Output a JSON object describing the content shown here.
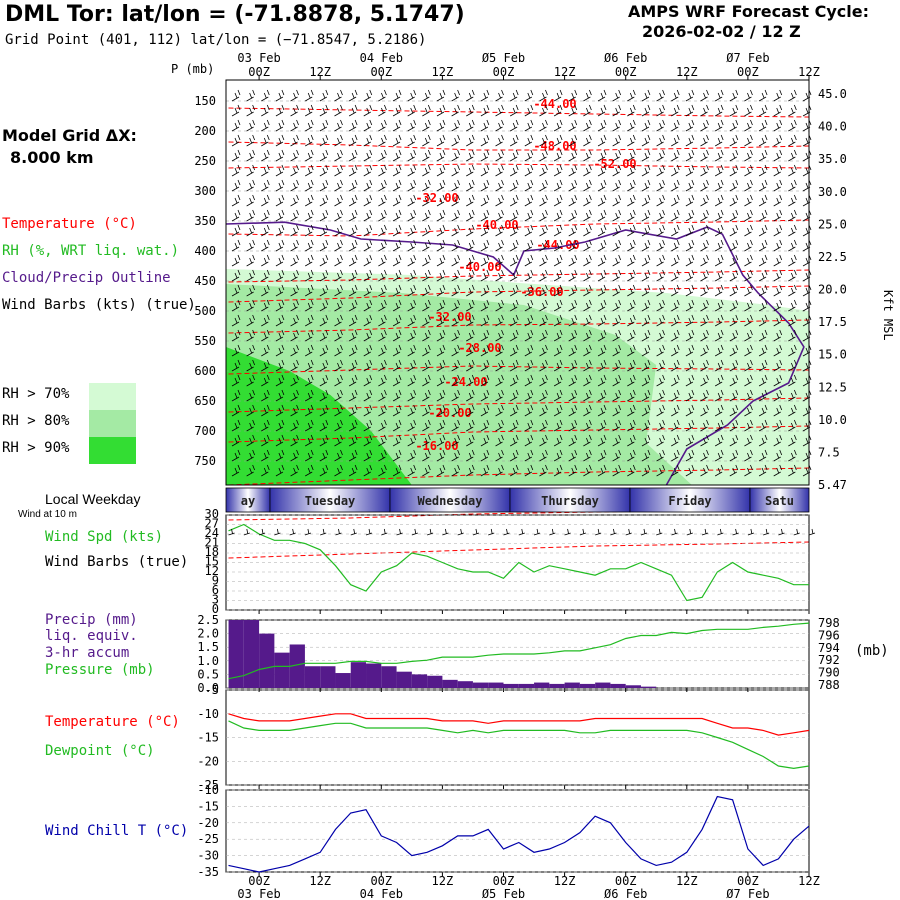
{
  "header": {
    "title": "DML Tor:  lat/lon = (-71.8878, 5.1747)",
    "grid_point": "Grid Point (401, 112) lat/lon = (−71.8547, 5.2186)",
    "cycle_line1": "AMPS WRF Forecast Cycle:",
    "cycle_line2": "2026-02-02 / 12  Z"
  },
  "model_grid": {
    "label": "Model Grid ΔX:",
    "value": "8.000 km"
  },
  "legend": {
    "temperature": "Temperature (°C)",
    "rh": "RH (%, WRT liq. wat.)",
    "cloud": "Cloud/Precip Outline",
    "wind": "Wind Barbs (kts) (true)",
    "rh70": "RH > 70%",
    "rh80": "RH > 80%",
    "rh90": "RH > 90%"
  },
  "colors": {
    "temperature": "#ff0000",
    "rh": "#22bb22",
    "cloud": "#551a8b",
    "rh70": "#d4fad4",
    "rh80": "#a4eaa4",
    "rh90": "#33dd33",
    "wind_chill": "#0000aa",
    "precip": "#551a8b",
    "pressure": "#22bb22",
    "dewpoint": "#22bb22"
  },
  "chart_data": [
    {
      "type": "contour",
      "name": "cross-section",
      "ylabel": "P (mb)",
      "y2label": "Kft MSL",
      "pressure_ticks": [
        150,
        200,
        250,
        300,
        350,
        400,
        450,
        500,
        550,
        600,
        650,
        700,
        750
      ],
      "height_ticks": [
        "45.0",
        "40.0",
        "35.0",
        "30.0",
        "25.0",
        "22.5",
        "20.0",
        "17.5",
        "15.0",
        "12.5",
        "10.0",
        "7.5",
        "5.47"
      ],
      "x_hours": [
        0,
        12,
        24,
        36,
        48,
        60,
        72,
        84,
        96,
        108
      ],
      "x_labels": [
        "00Z",
        "12Z",
        "00Z",
        "12Z",
        "00Z",
        "12Z",
        "00Z",
        "12Z",
        "00Z",
        "12Z"
      ],
      "date_labels": [
        {
          "hour": 0,
          "text": "03 Feb"
        },
        {
          "hour": 24,
          "text": "04 Feb"
        },
        {
          "hour": 48,
          "text": "Ø5 Feb"
        },
        {
          "hour": 72,
          "text": "Ø6 Feb"
        },
        {
          "hour": 96,
          "text": "Ø7 Feb"
        }
      ],
      "temperature_labels": [
        "-44.00",
        "-48.00",
        "-52.00",
        "-32.00",
        "-40.00",
        "-44.00",
        "-40.00",
        "-36.00",
        "-32.00",
        "-28.00",
        "-24.00",
        "-20.00",
        "-16.00"
      ],
      "temperature_contours": [
        -44,
        -48,
        -52,
        -32,
        -40,
        -36,
        -28,
        -24,
        -20,
        -16
      ],
      "rh_thresholds": [
        70,
        80,
        90
      ]
    },
    {
      "type": "line",
      "name": "wind-speed",
      "title": "Wind at 10 m",
      "ylabel": "Wind Spd (kts)",
      "ylabel2": "Wind Barbs (true)",
      "yticks": [
        0,
        3,
        6,
        9,
        12,
        15,
        18,
        21,
        24,
        27,
        30
      ],
      "ylim": [
        0,
        30
      ],
      "x_hours": [
        -6,
        -3,
        0,
        3,
        6,
        9,
        12,
        15,
        18,
        21,
        24,
        27,
        30,
        33,
        36,
        39,
        42,
        45,
        48,
        51,
        54,
        57,
        60,
        63,
        66,
        69,
        72,
        75,
        78,
        81,
        84,
        87,
        90,
        93,
        96,
        99,
        102,
        105,
        108
      ],
      "values": [
        25,
        27,
        24,
        22,
        22,
        21,
        19,
        14,
        8,
        6,
        12,
        14,
        18,
        17,
        15,
        13,
        12,
        12,
        10,
        15,
        12,
        14,
        13,
        12,
        11,
        13,
        13,
        15,
        13,
        11,
        3,
        4,
        12,
        15,
        12,
        11,
        10,
        8,
        8
      ]
    },
    {
      "type": "bar+line",
      "name": "precip-pressure",
      "ylabel": "Precip (mm)",
      "ylabel_lines": [
        "liq. equiv.",
        "3-hr accum"
      ],
      "y2label": "Pressure (mb)",
      "y2unit": "(mb)",
      "yticks": [
        0.0,
        0.5,
        1.0,
        1.5,
        2.0,
        2.5
      ],
      "y2ticks": [
        788,
        790,
        792,
        794,
        796,
        798
      ],
      "ylim": [
        0,
        2.5
      ],
      "y2lim": [
        787.5,
        798.5
      ],
      "x_hours": [
        -6,
        -3,
        0,
        3,
        6,
        9,
        12,
        15,
        18,
        21,
        24,
        27,
        30,
        33,
        36,
        39,
        42,
        45,
        48,
        51,
        54,
        57,
        60,
        63,
        66,
        69,
        72,
        75,
        78,
        81,
        84,
        87,
        90,
        93,
        96,
        99,
        102,
        105,
        108
      ],
      "precip": [
        2.5,
        2.5,
        2.0,
        1.3,
        1.6,
        0.8,
        0.8,
        0.55,
        0.95,
        0.9,
        0.8,
        0.6,
        0.5,
        0.45,
        0.3,
        0.25,
        0.2,
        0.2,
        0.15,
        0.15,
        0.2,
        0.15,
        0.2,
        0.15,
        0.2,
        0.15,
        0.1,
        0.05,
        0.0,
        0.0,
        0.0,
        0.0,
        0.0,
        0.0,
        0.0,
        0.0,
        0.0,
        0.0,
        0.0
      ],
      "pressure": [
        789,
        789.5,
        790.5,
        791,
        791,
        791.5,
        791.5,
        791.5,
        791.8,
        791.8,
        791.5,
        791.5,
        791.8,
        792,
        792.5,
        792.5,
        792.5,
        792.8,
        793,
        793,
        793,
        793.2,
        793.5,
        793.5,
        794,
        794.5,
        795.5,
        796,
        796,
        796.5,
        796.3,
        796.8,
        797,
        797,
        797,
        797.3,
        797.5,
        797.8,
        798
      ]
    },
    {
      "type": "line",
      "name": "temperature-dewpoint",
      "series": [
        {
          "name": "Temperature (°C)",
          "color": "#ff0000",
          "values": [
            -10,
            -11,
            -11.5,
            -11.5,
            -11.5,
            -11,
            -10.5,
            -10,
            -10,
            -11,
            -11,
            -11,
            -11,
            -11,
            -11.5,
            -11.5,
            -11.5,
            -12,
            -11.5,
            -11.5,
            -11.5,
            -11.5,
            -11.5,
            -11.5,
            -11,
            -11,
            -11,
            -11,
            -11,
            -11,
            -11,
            -11,
            -12,
            -13,
            -13,
            -13.5,
            -14.5,
            -14,
            -13.5
          ]
        },
        {
          "name": "Dewpoint (°C)",
          "color": "#22bb22",
          "values": [
            -11.5,
            -13,
            -13.5,
            -13.5,
            -13.5,
            -13,
            -12.5,
            -12,
            -12,
            -13,
            -13,
            -13,
            -13,
            -13,
            -13.5,
            -14,
            -13.5,
            -14,
            -13.5,
            -13.5,
            -13.5,
            -13.5,
            -13.5,
            -14,
            -14,
            -13.5,
            -13.5,
            -13.5,
            -13.5,
            -13.5,
            -13.5,
            -14,
            -15,
            -16,
            -17.5,
            -19,
            -21,
            -21.5,
            -21
          ]
        }
      ],
      "x_hours": [
        -6,
        -3,
        0,
        3,
        6,
        9,
        12,
        15,
        18,
        21,
        24,
        27,
        30,
        33,
        36,
        39,
        42,
        45,
        48,
        51,
        54,
        57,
        60,
        63,
        66,
        69,
        72,
        75,
        78,
        81,
        84,
        87,
        90,
        93,
        96,
        99,
        102,
        105,
        108
      ],
      "yticks": [
        -5,
        -10,
        -15,
        -20,
        -25
      ],
      "ylim": [
        -25,
        -5
      ]
    },
    {
      "type": "line",
      "name": "wind-chill",
      "ylabel": "Wind Chill T (°C)",
      "color": "#0000aa",
      "yticks": [
        -10,
        -15,
        -20,
        -25,
        -30,
        -35
      ],
      "ylim": [
        -35,
        -10
      ],
      "x_hours": [
        -6,
        -3,
        0,
        3,
        6,
        9,
        12,
        15,
        18,
        21,
        24,
        27,
        30,
        33,
        36,
        39,
        42,
        45,
        48,
        51,
        54,
        57,
        60,
        63,
        66,
        69,
        72,
        75,
        78,
        81,
        84,
        87,
        90,
        93,
        96,
        99,
        102,
        105,
        108
      ],
      "values": [
        -33,
        -34,
        -35,
        -34,
        -33,
        -31,
        -29,
        -22,
        -17,
        -16,
        -24,
        -26,
        -30,
        -29,
        -27,
        -24,
        -24,
        -22,
        -28,
        -26,
        -29,
        -28,
        -26,
        -23,
        -18,
        -20,
        -26,
        -31,
        -33,
        -32,
        -29,
        -22,
        -12,
        -13,
        -28,
        -33,
        -31,
        -25,
        -21
      ],
      "x_labels": [
        "00Z",
        "12Z",
        "00Z",
        "12Z",
        "00Z",
        "12Z",
        "00Z",
        "12Z",
        "00Z",
        "12Z"
      ],
      "date_labels": [
        "03 Feb",
        "04 Feb",
        "Ø5 Feb",
        "Ø6 Feb",
        "Ø7 Feb"
      ]
    }
  ],
  "weekday_bar": {
    "title": "Local Weekday",
    "subtitle": "Wind at 10 m",
    "days": [
      "ay",
      "Tuesday",
      "Wednesday",
      "Thursday",
      "Friday",
      "Satu"
    ]
  }
}
